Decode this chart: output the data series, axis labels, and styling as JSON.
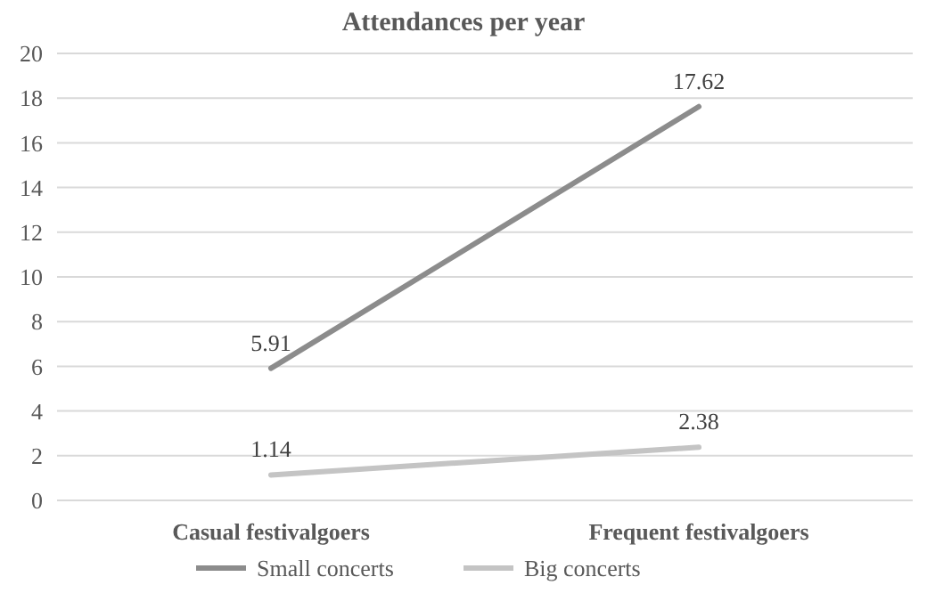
{
  "chart_data": {
    "type": "line",
    "title": "Attendances per year",
    "categories": [
      "Casual festivalgoers",
      "Frequent festivalgoers"
    ],
    "series": [
      {
        "name": "Small concerts",
        "color": "#8c8c8c",
        "values": [
          5.91,
          17.62
        ]
      },
      {
        "name": "Big concerts",
        "color": "#c4c4c4",
        "values": [
          1.14,
          2.38
        ]
      }
    ],
    "ylim": [
      0,
      20
    ],
    "yticks": [
      0,
      2,
      4,
      6,
      8,
      10,
      12,
      14,
      16,
      18,
      20
    ],
    "grid": "y",
    "legend": "bottom",
    "data_labels": true,
    "marker": "none",
    "line_style": "solid"
  }
}
